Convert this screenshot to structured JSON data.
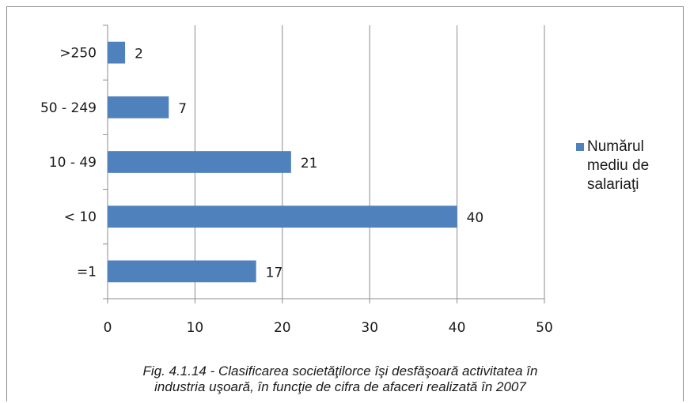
{
  "chart_data": {
    "type": "bar",
    "orientation": "horizontal",
    "categories": [
      ">250",
      "50 - 249",
      "10 - 49",
      "< 10",
      "=1"
    ],
    "series": [
      {
        "name": "Numărul mediu de salariaţi",
        "values": [
          2,
          7,
          21,
          40,
          17
        ],
        "color": "#4f81bd"
      }
    ],
    "xlim": [
      0,
      50
    ],
    "xticks": [
      0,
      10,
      20,
      30,
      40,
      50
    ],
    "grid": "vertical",
    "legend": "right",
    "caption_lines": [
      "Fig. 4.1.14 - Clasificarea societăţilorce îşi desfăşoară activitatea în",
      "industria uşoară, în funcţie de cifra de afaceri realizată în 2007"
    ]
  }
}
